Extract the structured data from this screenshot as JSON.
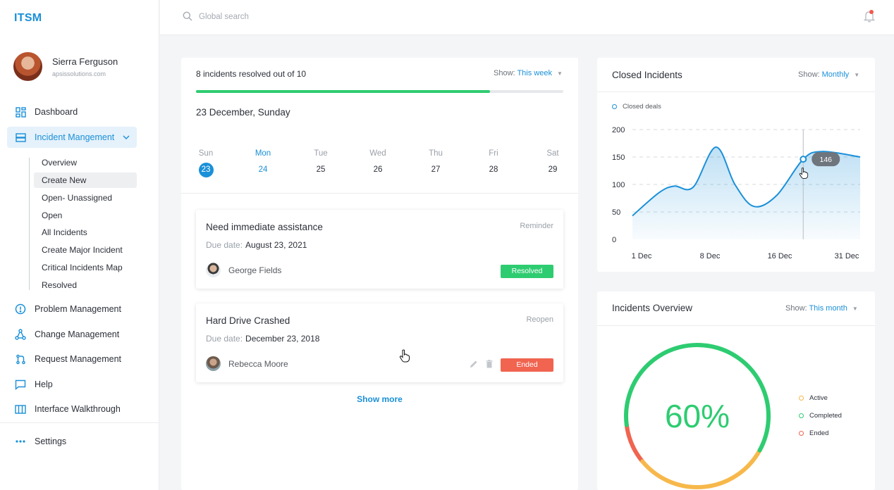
{
  "app": {
    "logo": "ITSM"
  },
  "user": {
    "name": "Sierra Ferguson",
    "email": "apsissolutions.com"
  },
  "sidebar": {
    "items": [
      {
        "label": "Dashboard",
        "icon": "dashboard-icon"
      },
      {
        "label": "Incident Mangement",
        "icon": "incident-icon"
      },
      {
        "label": "Problem Management",
        "icon": "problem-icon"
      },
      {
        "label": "Change Management",
        "icon": "change-icon"
      },
      {
        "label": "Request Management",
        "icon": "request-icon"
      },
      {
        "label": "Help",
        "icon": "help-icon"
      },
      {
        "label": "Interface Walkthrough",
        "icon": "walkthrough-icon"
      },
      {
        "label": "Settings",
        "icon": "settings-icon"
      }
    ],
    "subitems": [
      "Overview",
      "Create New",
      "Open- Unassigned",
      "Open",
      "All Incidents",
      "Create Major Incident",
      "Critical Incidents Map",
      "Resolved"
    ],
    "selected_subitem": "Create New"
  },
  "search": {
    "placeholder": "Global search"
  },
  "progress": {
    "title": "8 incidents resolved out of 10",
    "show_label": "Show:",
    "show_value": "This week",
    "fraction": 0.8
  },
  "calendar": {
    "heading": "23 December, Sunday",
    "days": [
      {
        "name": "Sun",
        "num": "23"
      },
      {
        "name": "Mon",
        "num": "24"
      },
      {
        "name": "Tue",
        "num": "25"
      },
      {
        "name": "Wed",
        "num": "26"
      },
      {
        "name": "Thu",
        "num": "27"
      },
      {
        "name": "Fri",
        "num": "28"
      },
      {
        "name": "Sat",
        "num": "29"
      }
    ]
  },
  "incidents": [
    {
      "title": "Need immediate assistance",
      "tag": "Reminder",
      "due_label": "Due date:",
      "due": "August 23, 2021",
      "person": "George Fields",
      "status": "Resolved"
    },
    {
      "title": "Hard Drive Crashed",
      "tag": "Reopen",
      "due_label": "Due date:",
      "due": "December 23, 2018",
      "person": "Rebecca Moore",
      "status": "Ended"
    }
  ],
  "show_more": "Show more",
  "closed_incidents": {
    "title": "Closed Incidents",
    "show_label": "Show:",
    "show_value": "Monthly",
    "legend": "Closed deals",
    "tooltip": "146"
  },
  "chart_data": {
    "type": "area",
    "series": [
      {
        "name": "Closed deals",
        "values": [
          43,
          85,
          97,
          95,
          168,
          100,
          60,
          80,
          146,
          160,
          150
        ]
      }
    ],
    "x": [
      0,
      3.5,
      5.5,
      8,
      11,
      13.5,
      16,
      19,
      22.5,
      25,
      30
    ],
    "xticks": [
      "1 Dec",
      "8 Dec",
      "16 Dec",
      "31 Dec"
    ],
    "yticks": [
      "0",
      "50",
      "100",
      "150",
      "200"
    ],
    "ylim": [
      0,
      200
    ],
    "grid": true,
    "highlight": {
      "value": 146
    },
    "color": "#1a90d8"
  },
  "overview": {
    "title": "Incidents Overview",
    "show_label": "Show:",
    "show_value": "This month",
    "percent": "60%",
    "segments": [
      {
        "label": "Completed",
        "fraction": 0.6,
        "color": "#2ecc71"
      },
      {
        "label": "Active",
        "fraction": 0.31,
        "color": "#f7b84b"
      },
      {
        "label": "Ended",
        "fraction": 0.09,
        "color": "#f06450"
      }
    ],
    "legend": [
      {
        "label": "Active",
        "color": "#f7b84b"
      },
      {
        "label": "Completed",
        "color": "#2ecc71"
      },
      {
        "label": "Ended",
        "color": "#f06450"
      }
    ]
  }
}
